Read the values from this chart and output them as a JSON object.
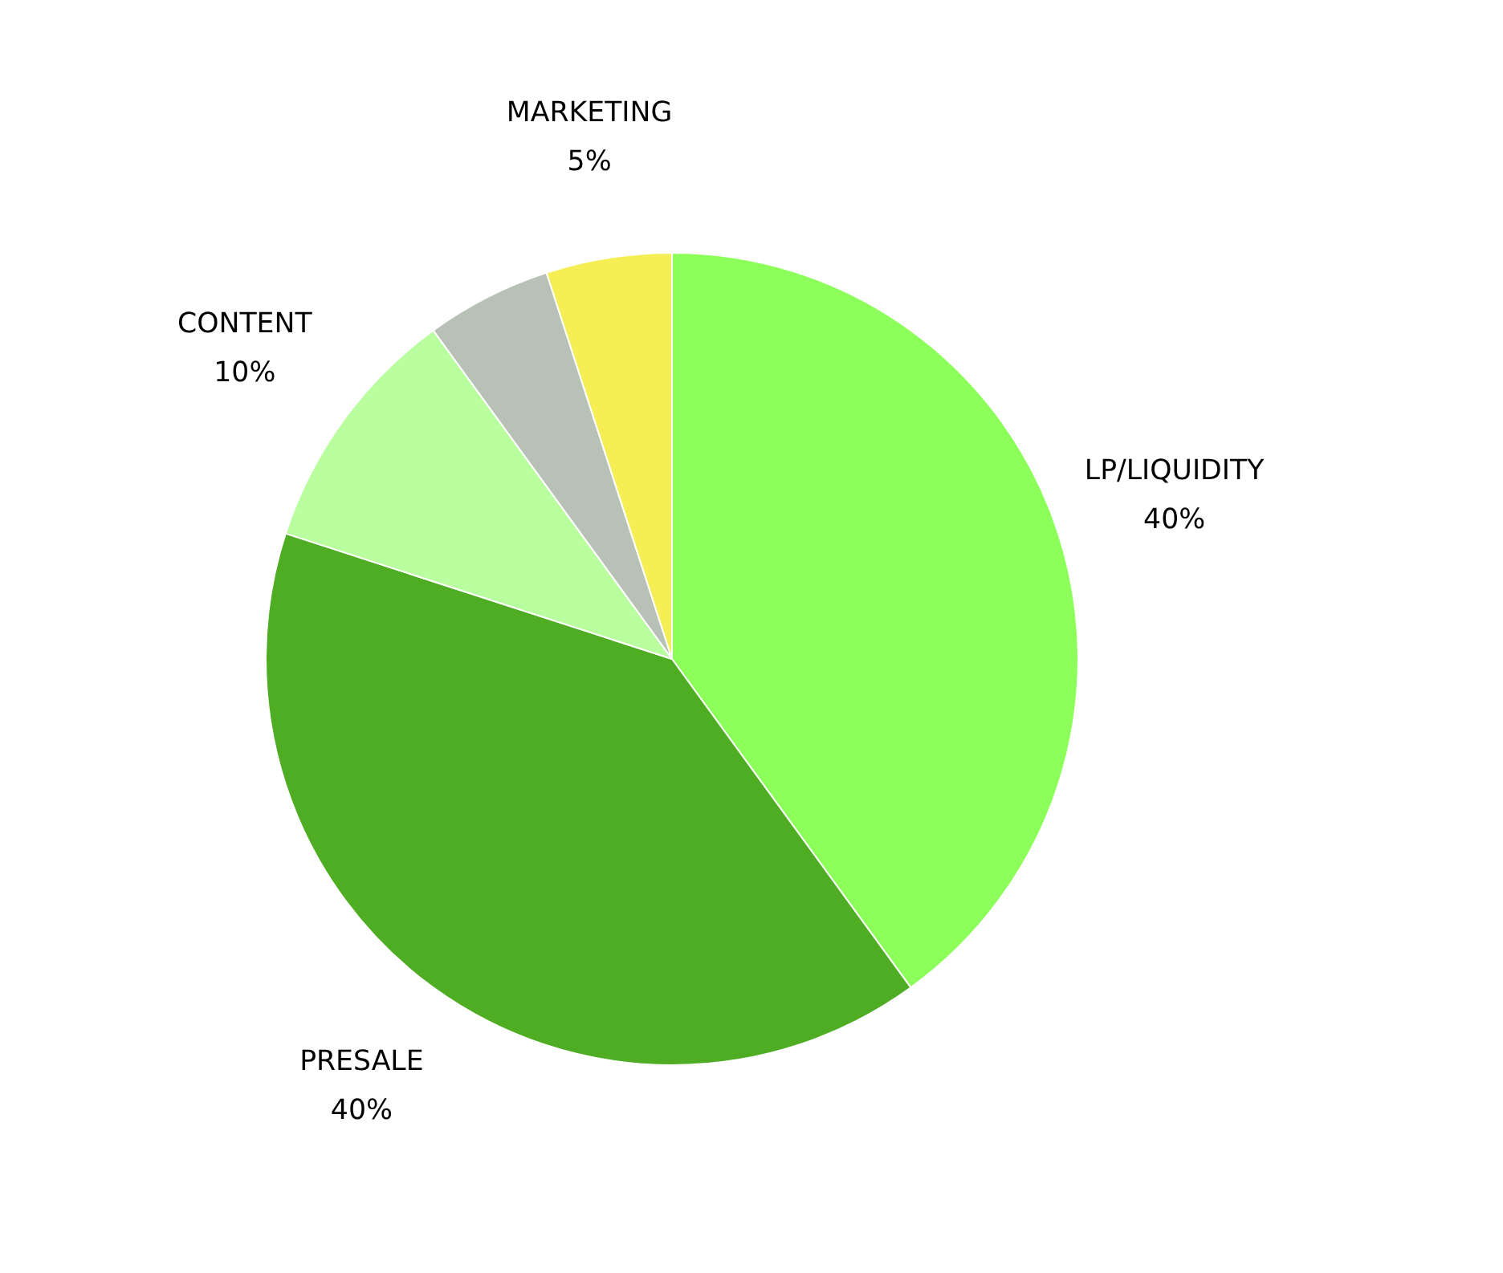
{
  "chart_data": {
    "type": "pie",
    "categories": [
      "LP/LIQUIDITY",
      "PRESALE",
      "CONTENT",
      null,
      "MARKETING"
    ],
    "values": [
      40,
      40,
      10,
      5,
      5
    ],
    "colors": [
      "#8cff5a",
      "#4fad24",
      "#b9ff9f",
      "#b8c1b6",
      "#f5ee55"
    ],
    "value_labels": [
      "40%",
      "40%",
      "10%",
      null,
      "5%"
    ]
  }
}
